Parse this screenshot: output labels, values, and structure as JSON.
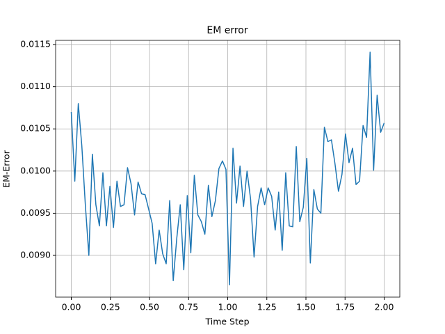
{
  "chart_data": {
    "type": "line",
    "title": "EM error",
    "x_label": "Time Step",
    "y_label": "EM-Error",
    "x": [
      0,
      0.0225,
      0.0449,
      0.0674,
      0.0899,
      0.1124,
      0.1348,
      0.1573,
      0.1798,
      0.2022,
      0.2247,
      0.2472,
      0.2697,
      0.2921,
      0.3146,
      0.3371,
      0.3596,
      0.382,
      0.4045,
      0.427,
      0.4494,
      0.4719,
      0.4944,
      0.5169,
      0.5393,
      0.5618,
      0.5843,
      0.6067,
      0.6292,
      0.6517,
      0.6742,
      0.6966,
      0.7191,
      0.7416,
      0.764,
      0.7865,
      0.809,
      0.8315,
      0.8539,
      0.8764,
      0.8989,
      0.9213,
      0.9438,
      0.9663,
      0.9888,
      1.0112,
      1.0337,
      1.0562,
      1.0787,
      1.1011,
      1.1236,
      1.1461,
      1.1685,
      1.191,
      1.2135,
      1.236,
      1.2584,
      1.2809,
      1.3034,
      1.3258,
      1.3483,
      1.3708,
      1.3933,
      1.4157,
      1.4382,
      1.4607,
      1.4831,
      1.5056,
      1.5281,
      1.5506,
      1.573,
      1.5955,
      1.618,
      1.6404,
      1.6629,
      1.6854,
      1.7079,
      1.7303,
      1.7528,
      1.7753,
      1.7978,
      1.8202,
      1.8427,
      1.8652,
      1.8876,
      1.9101,
      1.9326,
      1.9551,
      1.9775,
      2.0
    ],
    "series": [
      {
        "color": "#1f77b4",
        "values": [
          0.0107,
          0.00988,
          0.0108,
          0.0103,
          0.0096,
          0.009,
          0.0102,
          0.0096,
          0.00935,
          0.00998,
          0.00935,
          0.00982,
          0.00933,
          0.00988,
          0.00958,
          0.0096,
          0.01004,
          0.00985,
          0.00948,
          0.00987,
          0.00973,
          0.00972,
          0.00955,
          0.00938,
          0.0089,
          0.0093,
          0.00902,
          0.0089,
          0.00965,
          0.0087,
          0.0092,
          0.0096,
          0.00883,
          0.00971,
          0.00903,
          0.00995,
          0.00948,
          0.0094,
          0.00925,
          0.00983,
          0.00946,
          0.00965,
          0.01003,
          0.01012,
          0.01002,
          0.00865,
          0.01027,
          0.00962,
          0.01006,
          0.00958,
          0.01,
          0.00967,
          0.00898,
          0.00958,
          0.0098,
          0.0096,
          0.0098,
          0.0097,
          0.0093,
          0.00975,
          0.00906,
          0.00998,
          0.00935,
          0.00934,
          0.01029,
          0.0094,
          0.00957,
          0.01015,
          0.00891,
          0.00978,
          0.00955,
          0.0095,
          0.01052,
          0.01035,
          0.01037,
          0.01009,
          0.00976,
          0.00996,
          0.01044,
          0.0101,
          0.01027,
          0.00984,
          0.00988,
          0.01054,
          0.0104,
          0.01141,
          0.01001,
          0.0109,
          0.01046,
          0.01057
        ]
      }
    ],
    "xlim": [
      -0.1,
      2.1
    ],
    "ylim": [
      0.008505,
      0.01155
    ],
    "xticks": [
      {
        "value": 0,
        "label": "0.00"
      },
      0.25,
      {
        "value": 0.5,
        "label": "0.50"
      },
      0.75,
      {
        "value": 1,
        "label": "1.00"
      },
      1.25,
      {
        "value": 1.5,
        "label": "1.50"
      },
      1.75,
      {
        "value": 2,
        "label": "2.00"
      }
    ],
    "yticks": [
      {
        "value": 0.009,
        "label": "0.0090"
      },
      0.0095,
      {
        "value": 0.01,
        "label": "0.0100"
      },
      0.0105,
      {
        "value": 0.011,
        "label": "0.0110"
      },
      0.0115
    ],
    "grid": true
  }
}
